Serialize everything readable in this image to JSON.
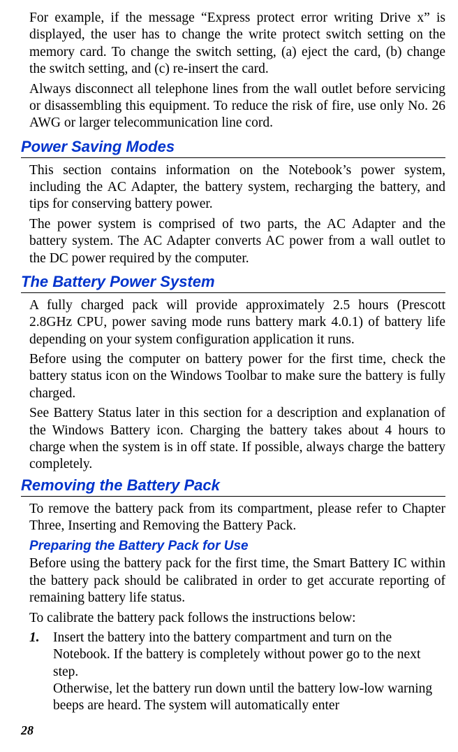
{
  "colors": {
    "heading": "#0033cc",
    "text": "#000000",
    "background": "#ffffff",
    "rule": "#000000"
  },
  "intro": {
    "p1": "For example, if the message “Express protect error writing Drive x” is displayed, the user has to change the write protect switch setting on the memory card. To change the switch setting, (a) eject the card, (b) change the switch setting, and (c) re-insert the card.",
    "p2": "Always disconnect all telephone lines from the wall outlet before servicing or disassembling this equipment. To reduce the risk of fire, use only No. 26 AWG or larger telecommunication line cord."
  },
  "sec1": {
    "title": "Power Saving Modes",
    "p1": "This section contains information on the Notebook’s power system, including the AC Adapter, the battery system, recharging the battery, and tips for conserving battery power.",
    "p2": "The power system is comprised of two parts, the AC Adapter and the battery system.  The AC Adapter converts AC power from a wall outlet to the DC power required by the computer."
  },
  "sec2": {
    "title": "The Battery Power System",
    "p1": "A fully charged pack will provide approximately 2.5 hours (Prescott 2.8GHz CPU, power saving mode runs battery mark 4.0.1) of battery life depending on your system configuration application it runs.",
    "p2": "Before using the computer on battery power for the first time, check the battery status icon on the Windows Toolbar to make sure the battery is fully charged.",
    "p3": "See Battery Status later in this section for a description and explanation of the Windows Battery icon. Charging the battery takes about 4 hours to charge when the system is in off state. If possible, always charge the battery completely."
  },
  "sec3": {
    "title": "Removing the Battery Pack",
    "p1": "To remove the battery pack from its compartment, please refer to Chapter Three, Inserting and Removing the Battery Pack."
  },
  "sec4": {
    "title": "Preparing the Battery Pack for Use",
    "p1": "Before using the battery pack for the first time, the Smart Battery IC within the battery pack should be calibrated in order to get accurate reporting of remaining battery life status.",
    "p2": "To calibrate the battery pack follows the instructions below:",
    "list": [
      {
        "marker": "1.",
        "text": "Insert the battery into the battery compartment and turn on the Notebook. If the battery is completely without power go to the next step.",
        "text2": "Otherwise, let the battery run down until the battery low-low warning beeps are heard. The system will automatically enter"
      }
    ]
  },
  "pageNumber": "28"
}
